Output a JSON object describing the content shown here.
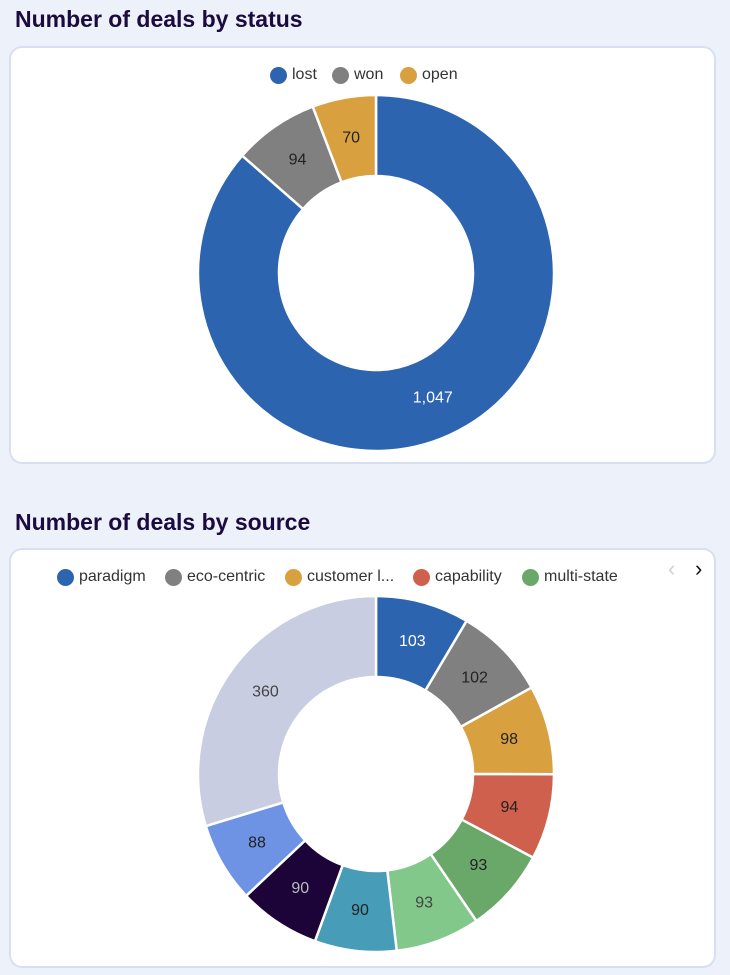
{
  "chart_data": [
    {
      "type": "pie",
      "title": "Number of deals by status",
      "donut": true,
      "legend_position": "top",
      "categories": [
        "lost",
        "won",
        "open"
      ],
      "values": [
        1047,
        94,
        70
      ],
      "value_labels": [
        "1,047",
        "94",
        "70"
      ],
      "colors": [
        "#2c64b0",
        "#808080",
        "#d9a040"
      ],
      "label_colors": [
        "#ffffff",
        "#222222",
        "#222222"
      ]
    },
    {
      "type": "pie",
      "title": "Number of deals by source",
      "donut": true,
      "legend_position": "top",
      "legend_visible": [
        "paradigm",
        "eco-centric",
        "customer l...",
        "capability",
        "multi-state"
      ],
      "values": [
        103,
        102,
        98,
        94,
        93,
        93,
        90,
        90,
        88,
        360
      ],
      "value_labels": [
        "103",
        "102",
        "98",
        "94",
        "93",
        "93",
        "90",
        "90",
        "88",
        "360"
      ],
      "colors": [
        "#2c64b0",
        "#808080",
        "#d9a040",
        "#cf604d",
        "#6aa86a",
        "#82c88a",
        "#479cb8",
        "#1c0338",
        "#6e92e4",
        "#c8cde2"
      ],
      "label_colors": [
        "#ffffff",
        "#222222",
        "#222222",
        "#222222",
        "#222222",
        "#444444",
        "#222222",
        "#bbbbbb",
        "#222222",
        "#444444"
      ]
    }
  ],
  "pager": {
    "prev_icon": "chevron-left-icon",
    "next_icon": "chevron-right-icon",
    "prev_symbol": "‹",
    "next_symbol": "›",
    "prev_color": "#d0d0d0",
    "next_color": "#111111"
  }
}
